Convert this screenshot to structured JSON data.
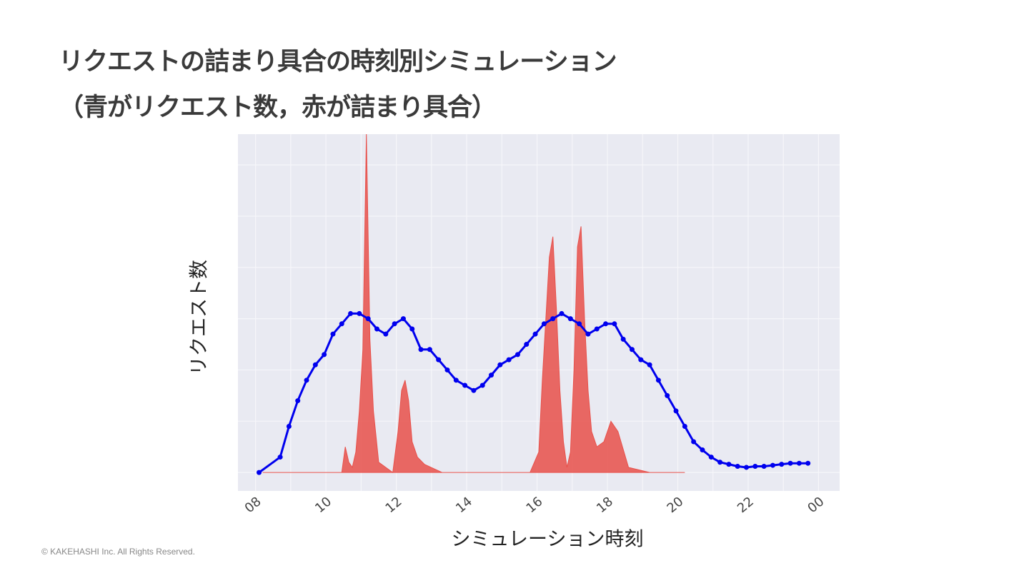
{
  "slide": {
    "title_line1": "リクエストの詰まり具合の時刻別シミュレーション",
    "title_line2": "（青がリクエスト数，赤が詰まり具合）",
    "footer": "© KAKEHASHI Inc. All Rights Reserved."
  },
  "chart_data": {
    "type": "line",
    "xlabel": "シミュレーション時刻",
    "ylabel": "リクエスト数",
    "x_tick_labels": [
      "08",
      "10",
      "12",
      "14",
      "16",
      "18",
      "20",
      "22",
      "00"
    ],
    "xlim": [
      7.5,
      24.6
    ],
    "ylim": [
      -1.8,
      33
    ],
    "y_ticks_labeled": false,
    "grid": true,
    "colors": {
      "requests": "#0000ee",
      "congestion": "#e8504a",
      "plot_bg": "#e9eaf2",
      "grid": "#f6f6fa"
    },
    "series": [
      {
        "role": "requests",
        "style": "line+markers",
        "x": [
          8.1,
          8.7,
          8.95,
          9.2,
          9.45,
          9.7,
          9.95,
          10.2,
          10.45,
          10.7,
          10.95,
          11.2,
          11.45,
          11.7,
          11.95,
          12.2,
          12.45,
          12.7,
          12.95,
          13.2,
          13.45,
          13.7,
          13.95,
          14.2,
          14.45,
          14.7,
          14.95,
          15.2,
          15.45,
          15.7,
          15.95,
          16.2,
          16.45,
          16.7,
          16.95,
          17.2,
          17.45,
          17.7,
          17.95,
          18.2,
          18.45,
          18.7,
          18.95,
          19.2,
          19.45,
          19.7,
          19.95,
          20.2,
          20.45,
          20.7,
          20.95,
          21.2,
          21.45,
          21.7,
          21.95,
          22.2,
          22.45,
          22.7,
          22.95,
          23.2,
          23.45,
          23.7
        ],
        "y": [
          0,
          1.5,
          4.5,
          7,
          9,
          10.5,
          11.5,
          13.5,
          14.5,
          15.5,
          15.5,
          15,
          14,
          13.5,
          14.5,
          15,
          14,
          12,
          12,
          11,
          10,
          9,
          8.5,
          8,
          8.5,
          9.5,
          10.5,
          11,
          11.5,
          12.5,
          13.5,
          14.5,
          15,
          15.5,
          15,
          14.5,
          13.5,
          14,
          14.5,
          14.5,
          13,
          12,
          11,
          10.5,
          9,
          7.5,
          6,
          4.5,
          3,
          2.2,
          1.5,
          1,
          0.8,
          0.6,
          0.5,
          0.6,
          0.6,
          0.7,
          0.8,
          0.9,
          0.9,
          0.9
        ]
      },
      {
        "role": "congestion",
        "style": "area",
        "x": [
          8.2,
          10.45,
          10.55,
          10.65,
          10.75,
          10.85,
          10.95,
          11.05,
          11.15,
          11.25,
          11.35,
          11.5,
          11.9,
          12.05,
          12.15,
          12.25,
          12.35,
          12.45,
          12.6,
          12.8,
          13.3,
          14.5,
          15.5,
          15.8,
          16.05,
          16.15,
          16.25,
          16.35,
          16.45,
          16.55,
          16.65,
          16.75,
          16.85,
          16.95,
          17.05,
          17.15,
          17.25,
          17.35,
          17.45,
          17.55,
          17.7,
          17.9,
          18.1,
          18.3,
          18.6,
          19.2,
          20.2
        ],
        "y": [
          0,
          0,
          2.5,
          1,
          0.5,
          2,
          6,
          12,
          33,
          13,
          6,
          1,
          0,
          4,
          8,
          9,
          7,
          3,
          1.5,
          0.8,
          0,
          0,
          0,
          0,
          2,
          9,
          15,
          21,
          23,
          16,
          8,
          3,
          0.5,
          2,
          10,
          22,
          24,
          15,
          8,
          4,
          2.5,
          3,
          5,
          4,
          0.5,
          0,
          0
        ]
      }
    ]
  }
}
